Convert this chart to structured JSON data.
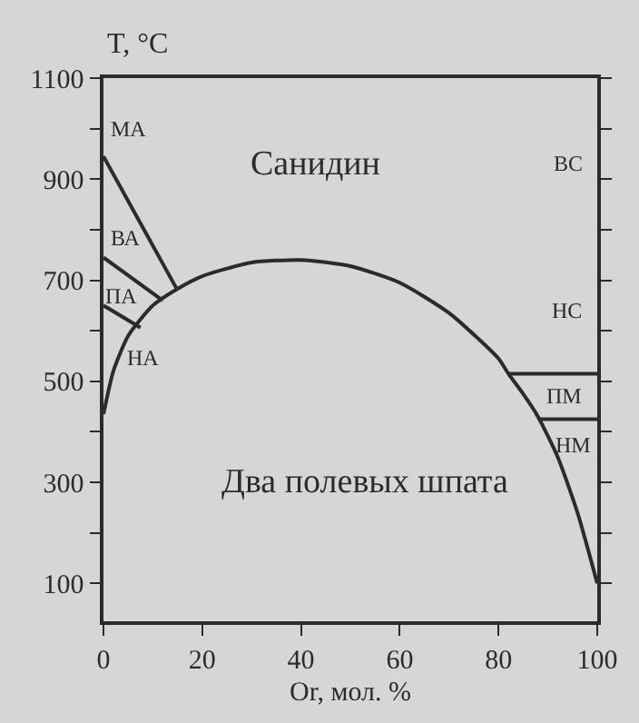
{
  "chart_data": {
    "type": "line",
    "xlabel": "Or, мол. %",
    "ylabel": "T, °C",
    "xlim": [
      0,
      100
    ],
    "xticks": [
      0,
      20,
      40,
      60,
      80,
      100
    ],
    "ylim": [
      25,
      1100
    ],
    "yticks": [
      100,
      {
        "value": 200,
        "label": null
      },
      300,
      {
        "value": 400,
        "label": null
      },
      500,
      {
        "value": 600,
        "label": null
      },
      700,
      {
        "value": 800,
        "label": null
      },
      900,
      {
        "value": 1000,
        "label": null
      },
      1100
    ],
    "grid": false,
    "marker": "none",
    "line_style": "solid",
    "series": [
      {
        "color": "#2b2b2b",
        "x": [
          0,
          15
        ],
        "values": [
          945,
          680
        ]
      },
      {
        "color": "#2b2b2b",
        "x": [
          0,
          2,
          5,
          10,
          15,
          20,
          30,
          40,
          50,
          60,
          70,
          80,
          82,
          85,
          88,
          92,
          96,
          100
        ],
        "values": [
          435,
          520,
          590,
          650,
          683,
          708,
          735,
          740,
          728,
          695,
          635,
          545,
          515,
          475,
          430,
          350,
          240,
          100
        ]
      },
      {
        "color": "#2b2b2b",
        "x": [
          82,
          100
        ],
        "values": [
          515,
          515
        ]
      },
      {
        "color": "#2b2b2b",
        "x": [
          88,
          100
        ],
        "values": [
          425,
          425
        ]
      },
      {
        "color": "#2b2b2b",
        "x": [
          0,
          12
        ],
        "values": [
          745,
          660
        ]
      },
      {
        "color": "#2b2b2b",
        "x": [
          0,
          7.5
        ],
        "values": [
          650,
          606
        ]
      }
    ],
    "annotations": [
      "МА",
      "ВА",
      "ПА",
      "НА",
      "Санидин",
      "ВС",
      "НС",
      "ПМ",
      "НМ",
      "Два полевых шпата"
    ]
  }
}
